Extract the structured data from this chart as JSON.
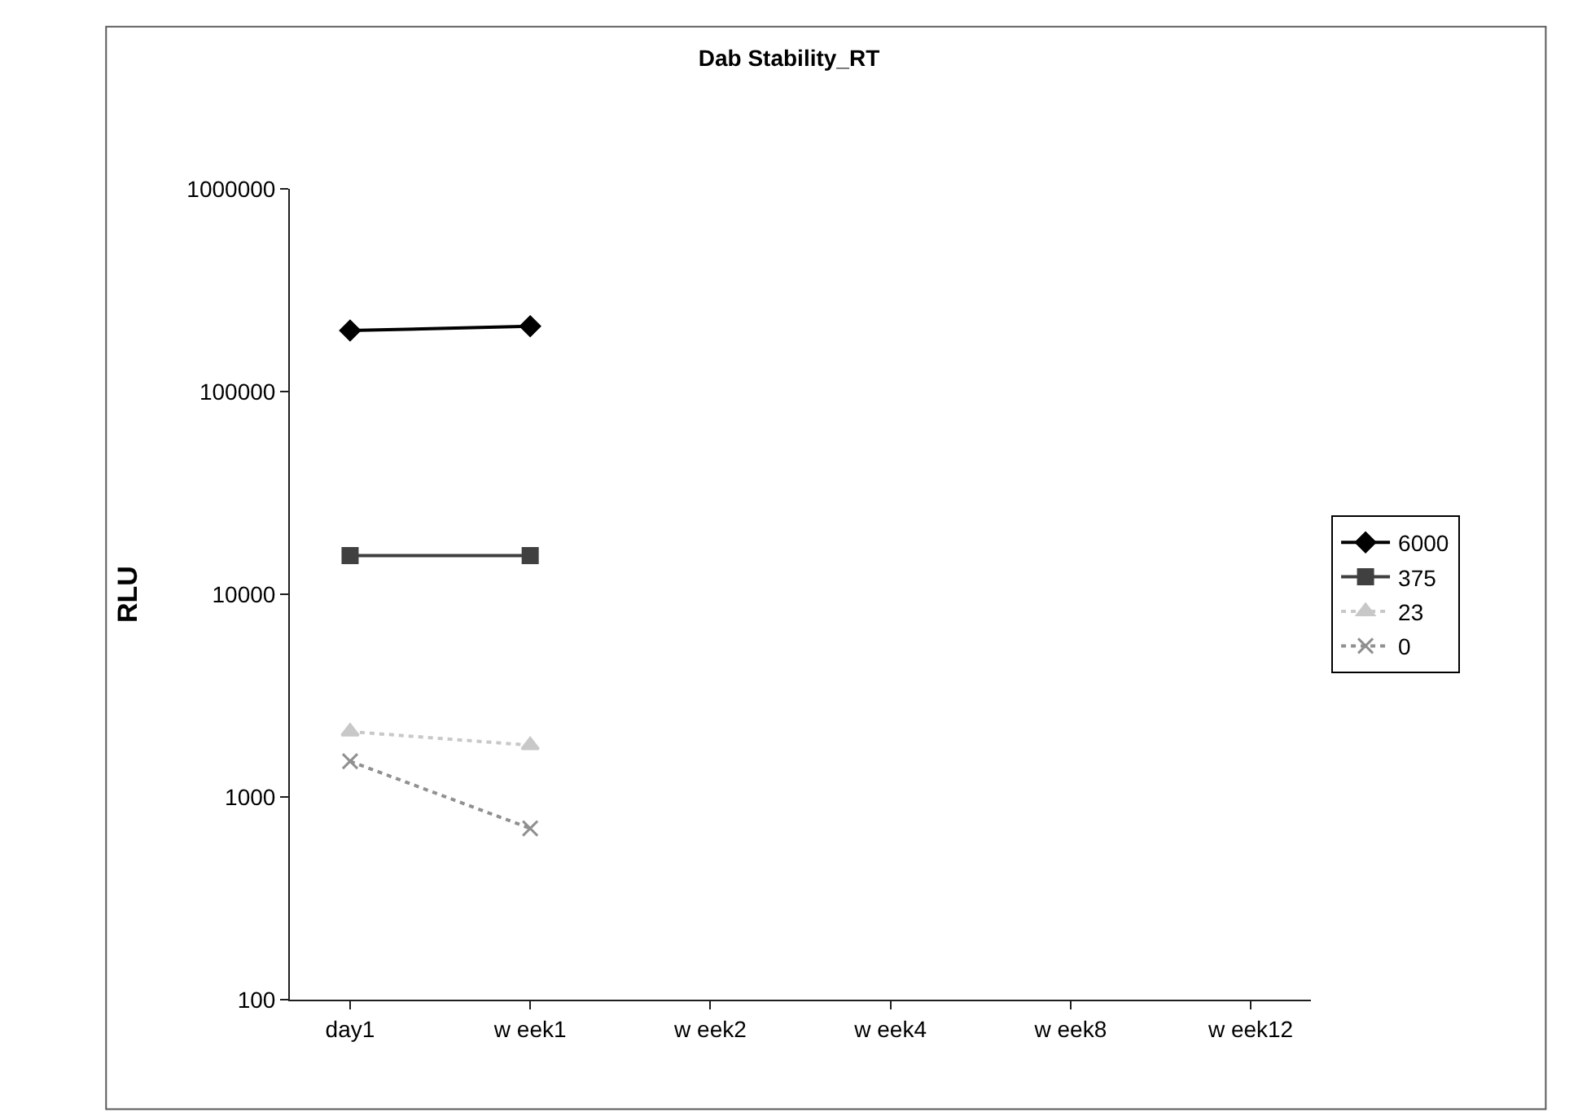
{
  "chart_data": {
    "type": "line",
    "title": "Dab Stability_RT",
    "ylabel": "RLU",
    "categories": [
      "day1",
      "w eek1",
      "w eek2",
      "w eek4",
      "w eek8",
      "w eek12"
    ],
    "series": [
      {
        "name": "6000",
        "color": "#000000",
        "marker": "diamond",
        "line_style": "solid",
        "values": [
          200000,
          210000,
          null,
          null,
          null,
          null
        ]
      },
      {
        "name": "375",
        "color": "#404040",
        "marker": "square",
        "line_style": "solid",
        "values": [
          15500,
          15500,
          null,
          null,
          null,
          null
        ]
      },
      {
        "name": "23",
        "color": "#c8c8c8",
        "marker": "triangle",
        "line_style": "dotted",
        "values": [
          2100,
          1800,
          null,
          null,
          null,
          null
        ]
      },
      {
        "name": "0",
        "color": "#909090",
        "marker": "cross",
        "line_style": "dotted",
        "values": [
          1500,
          700,
          null,
          null,
          null,
          null
        ]
      }
    ],
    "log": "y",
    "ylim": [
      100,
      1000000
    ],
    "yticks": [
      100,
      1000,
      10000,
      100000,
      1000000
    ],
    "legend": "right"
  }
}
